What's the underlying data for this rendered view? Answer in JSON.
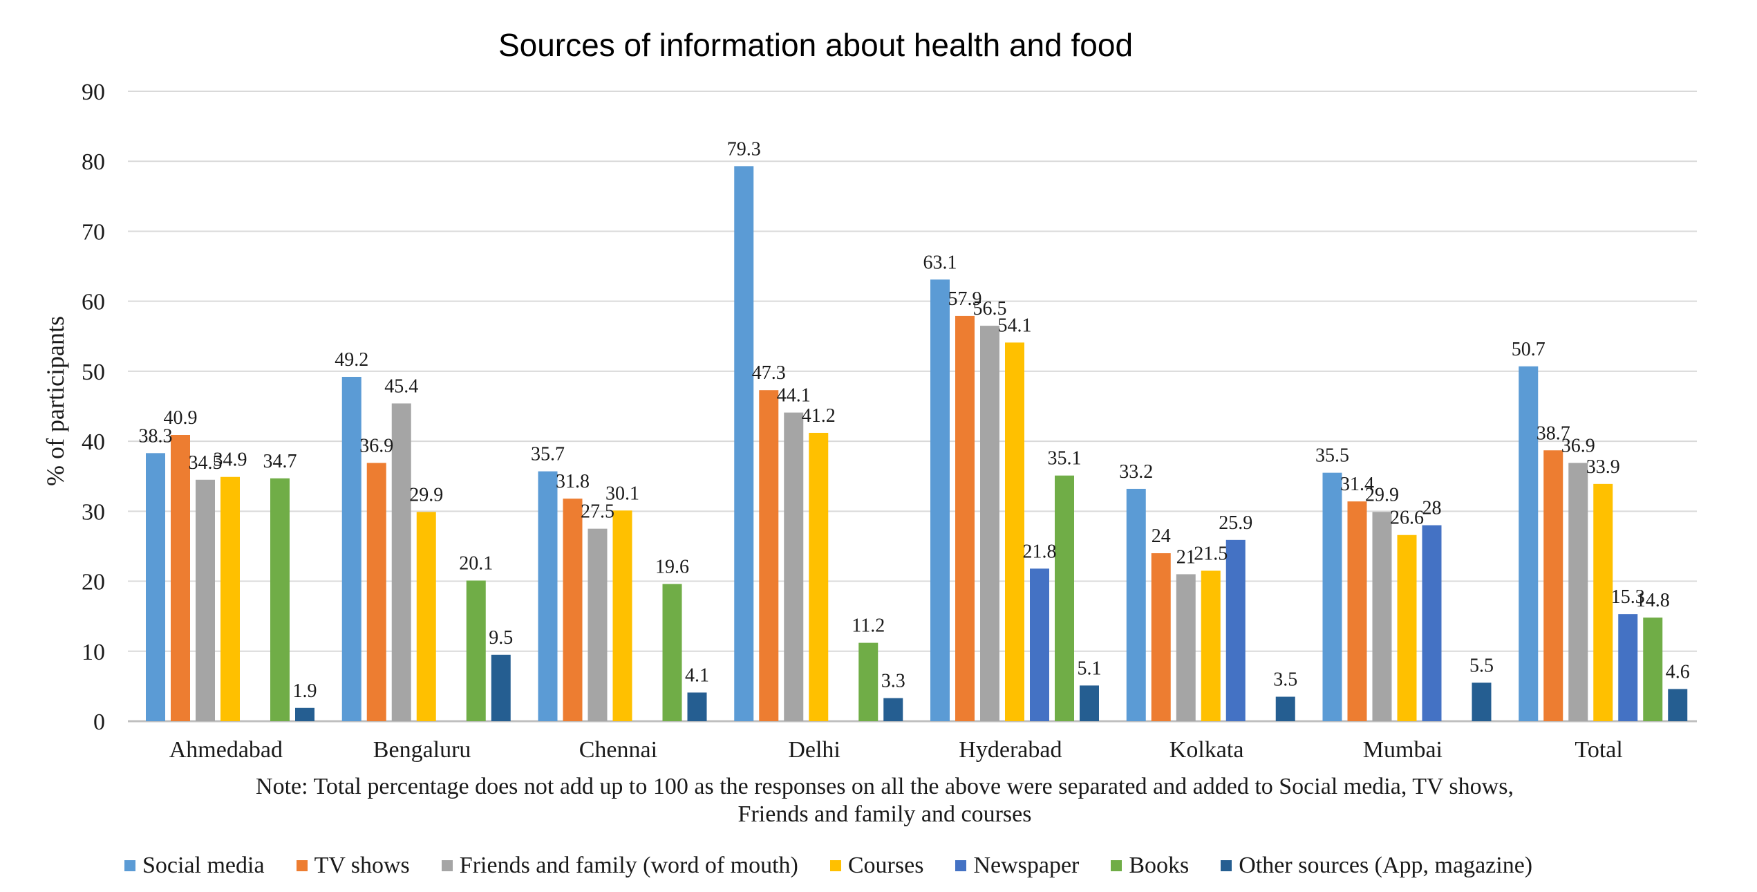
{
  "chart_data": {
    "type": "bar",
    "title": "Sources of information about health and food",
    "ylabel": "% of participants",
    "xlabel": "",
    "ylim": [
      0,
      90
    ],
    "yticks": [
      0,
      10,
      20,
      30,
      40,
      50,
      60,
      70,
      80,
      90
    ],
    "grid": true,
    "legend_position": "bottom",
    "categories": [
      "Ahmedabad",
      "Bengaluru",
      "Chennai",
      "Delhi",
      "Hyderabad",
      "Kolkata",
      "Mumbai",
      "Total"
    ],
    "series": [
      {
        "name": "Social media",
        "color": "#5B9BD5",
        "values": [
          38.3,
          49.2,
          35.7,
          79.3,
          63.1,
          33.2,
          35.5,
          50.7
        ]
      },
      {
        "name": "TV shows",
        "color": "#ED7D31",
        "values": [
          40.9,
          36.9,
          31.8,
          47.3,
          57.9,
          24,
          31.4,
          38.7
        ]
      },
      {
        "name": "Friends and family (word of mouth)",
        "color": "#A5A5A5",
        "values": [
          34.5,
          45.4,
          27.5,
          44.1,
          56.5,
          21,
          29.9,
          36.9
        ]
      },
      {
        "name": "Courses",
        "color": "#FFC000",
        "values": [
          34.9,
          29.9,
          30.1,
          41.2,
          54.1,
          21.5,
          26.6,
          33.9
        ]
      },
      {
        "name": "Newspaper",
        "color": "#4472C4",
        "values": [
          null,
          null,
          null,
          null,
          21.8,
          25.9,
          28,
          15.3
        ]
      },
      {
        "name": "Books",
        "color": "#70AD47",
        "values": [
          34.7,
          20.1,
          19.6,
          11.2,
          35.1,
          null,
          null,
          14.8
        ]
      },
      {
        "name": "Other sources (App, magazine)",
        "color": "#255E91",
        "values": [
          1.9,
          9.5,
          4.1,
          3.3,
          5.1,
          3.5,
          5.5,
          4.6
        ]
      }
    ],
    "value_labels": [
      [
        "38.3",
        "49.2",
        "35.7",
        "79.3",
        "63.1",
        "33.2",
        "35.5",
        "50.7"
      ],
      [
        "40.9",
        "36.9",
        "31.8",
        "47.3",
        "57.9",
        "24",
        "31.4",
        "38.7"
      ],
      [
        "34.5",
        "45.4",
        "27.5",
        "44.1",
        "56.5",
        "21",
        "29.9",
        "36.9"
      ],
      [
        "34.9",
        "29.9",
        "30.1",
        "41.2",
        "54.1",
        "21.5",
        "26.6",
        "33.9"
      ],
      [
        "",
        "",
        "",
        "",
        "21.8",
        "25.9",
        "28",
        "15.3"
      ],
      [
        "34.7",
        "20.1",
        "19.6",
        "11.2",
        "35.1",
        "",
        "",
        "14.8"
      ],
      [
        "1.9",
        "9.5",
        "4.1",
        "3.3",
        "5.1",
        "3.5",
        "5.5",
        "4.6"
      ]
    ]
  },
  "note": "Note: Total percentage does not add up to 100 as the responses on all the above were separated and added to Social media, TV shows, Friends and family and courses"
}
